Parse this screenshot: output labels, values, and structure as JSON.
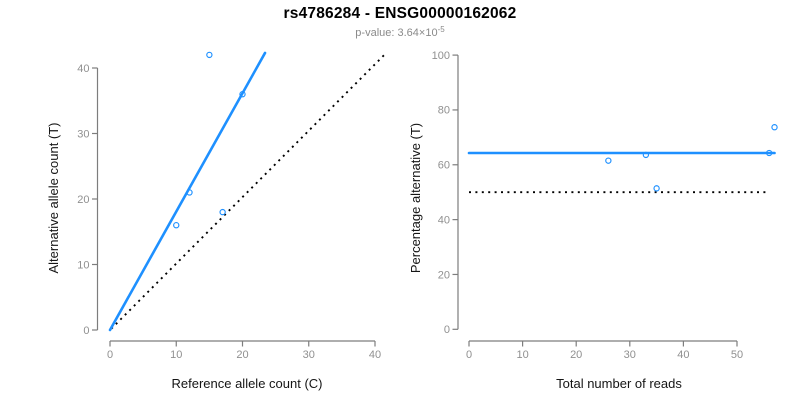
{
  "header": {
    "title": "rs4786284 - ENSG00000162062",
    "subtitle_prefix": "p-value: 3.64×10",
    "subtitle_exponent": "-5"
  },
  "colors": {
    "accent_blue": "#1E90FF",
    "axis_gray": "#7d7d7d",
    "tick_label_gray": "#909090",
    "line_black": "#000000"
  },
  "chart_data": [
    {
      "type": "scatter",
      "xlabel": "Reference allele count (C)",
      "ylabel": "Alternative allele count (T)",
      "xlim": [
        0,
        41.6
      ],
      "ylim": [
        0,
        42.4
      ],
      "xticks": [
        0,
        10,
        20,
        30,
        40
      ],
      "yticks": [
        0,
        10,
        20,
        30,
        40
      ],
      "points": [
        [
          10,
          16
        ],
        [
          12,
          21
        ],
        [
          15,
          42
        ],
        [
          17,
          18
        ],
        [
          20,
          36
        ]
      ],
      "fit_line": {
        "x1": 0,
        "y1": 0,
        "x2": 23.4,
        "y2": 42.3,
        "style": "solid"
      },
      "reference_line": {
        "x1": 0.2,
        "y1": 0.2,
        "x2": 41.6,
        "y2": 42.2,
        "style": "dotted"
      }
    },
    {
      "type": "scatter",
      "xlabel": "Total number of reads",
      "ylabel": "Percentage alternative (T)",
      "xlim": [
        0,
        57
      ],
      "ylim": [
        0,
        100
      ],
      "xticks": [
        0,
        10,
        20,
        30,
        40,
        50
      ],
      "yticks": [
        0,
        20,
        40,
        60,
        80,
        100
      ],
      "points": [
        [
          26,
          61.5
        ],
        [
          33,
          63.6
        ],
        [
          35,
          51.4
        ],
        [
          56,
          64.3
        ],
        [
          57,
          73.7
        ]
      ],
      "fit_line": {
        "x1": 0,
        "y1": 64.3,
        "x2": 57,
        "y2": 64.3,
        "style": "solid"
      },
      "reference_line": {
        "x1": 0,
        "y1": 50,
        "x2": 55.8,
        "y2": 50,
        "style": "dotted"
      }
    }
  ]
}
